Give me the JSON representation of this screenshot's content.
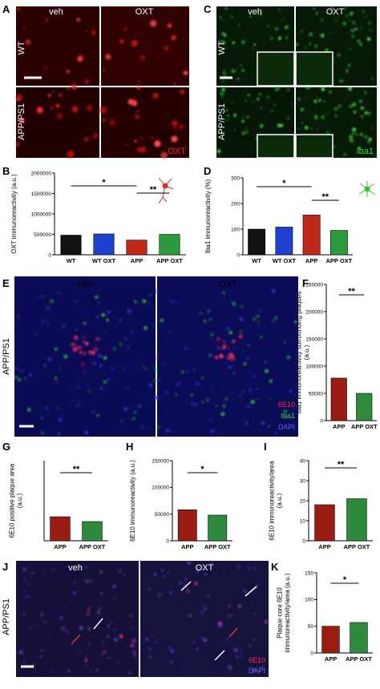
{
  "panel_letters": [
    "A",
    "B",
    "C",
    "D",
    "E",
    "F",
    "G",
    "H",
    "I",
    "J",
    "K"
  ],
  "image_A": {
    "columns": [
      "veh",
      "OXT"
    ],
    "rows": [
      "WT",
      "APP/PS1"
    ],
    "stain": "OXT"
  },
  "image_C": {
    "columns": [
      "veh",
      "OXT"
    ],
    "rows": [
      "WT",
      "APP/PS1"
    ],
    "stain": "Iba1"
  },
  "image_E": {
    "columns": [
      "veh",
      "OXT"
    ],
    "row": "APP/PS1",
    "stains": [
      "6E10",
      "Iba1",
      "DAPI"
    ]
  },
  "image_J": {
    "columns": [
      "veh",
      "OXT"
    ],
    "row": "APP/PS1",
    "stains": [
      "6E10",
      "DAPI"
    ]
  },
  "chart_data": [
    {
      "type": "bar",
      "y_label": "OXT immunoreactivity (a.u.)",
      "categories": [
        "WT",
        "WT OXT",
        "APP",
        "APP OXT"
      ],
      "values": [
        480000,
        510000,
        360000,
        500000
      ],
      "colors": [
        "#111111",
        "#1f3fd0",
        "#c0281c",
        "#2e9a3e"
      ],
      "ylim": [
        0,
        2000000
      ],
      "yticks": [
        0,
        500000,
        1000000,
        1500000,
        2000000
      ],
      "annotations": [
        "*",
        "**"
      ]
    },
    {
      "type": "bar",
      "y_label": "Iba1 immunoreactivity (%)",
      "categories": [
        "WT",
        "WT OXT",
        "APP",
        "APP OXT"
      ],
      "values": [
        100,
        108,
        155,
        95
      ],
      "colors": [
        "#111111",
        "#1f3fd0",
        "#c0281c",
        "#2e9a3e"
      ],
      "ylim": [
        0,
        300
      ],
      "yticks": [
        0,
        100,
        200,
        300
      ],
      "annotations": [
        "*",
        "**"
      ]
    },
    {
      "type": "bar",
      "y_label": "Iba1 immunoreactivity surrounding plaques (a.u.)",
      "categories": [
        "APP",
        "APP OXT"
      ],
      "values": [
        78000,
        50000
      ],
      "colors": [
        "#9b1c12",
        "#2e8b3e"
      ],
      "ylim": [
        0,
        250000
      ],
      "yticks": [
        0,
        50000,
        100000,
        150000,
        200000,
        250000
      ],
      "annotations": [
        "**"
      ]
    },
    {
      "type": "bar",
      "y_label": "6E10 positive plaque area (a.u.)",
      "categories": [
        "APP",
        "APP OXT"
      ],
      "values": [
        3.0,
        2.4
      ],
      "colors": [
        "#9b1c12",
        "#2e8b3e"
      ],
      "ylim": [
        0,
        10
      ],
      "annotations": [
        "**"
      ]
    },
    {
      "type": "bar",
      "y_label": "6E10 immunoreactivity (a.u.)",
      "categories": [
        "APP",
        "APP OXT"
      ],
      "values": [
        58000,
        48000
      ],
      "colors": [
        "#9b1c12",
        "#2e8b3e"
      ],
      "ylim": [
        0,
        150000
      ],
      "yticks": [
        0,
        50000,
        100000,
        150000
      ],
      "annotations": [
        "*"
      ]
    },
    {
      "type": "bar",
      "y_label": "6E10 immunoreactivity/area (a.u.)",
      "categories": [
        "APP",
        "APP OXT"
      ],
      "values": [
        18,
        21
      ],
      "colors": [
        "#9b1c12",
        "#2e8b3e"
      ],
      "ylim": [
        0,
        40
      ],
      "yticks": [
        0,
        10,
        20,
        30,
        40
      ],
      "annotations": [
        "**"
      ]
    },
    {
      "type": "bar",
      "y_label": "Plaque core 6E10 immunoreactivity/area (a.u.)",
      "categories": [
        "APP",
        "APP OXT"
      ],
      "values": [
        50,
        57
      ],
      "colors": [
        "#9b1c12",
        "#2e8b3e"
      ],
      "ylim": [
        0,
        150
      ],
      "yticks": [
        0,
        50,
        100,
        150
      ],
      "annotations": [
        "*"
      ]
    }
  ]
}
